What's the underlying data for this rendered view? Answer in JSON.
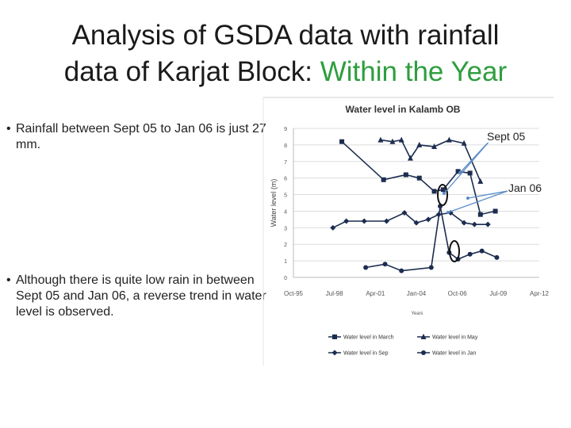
{
  "slide": {
    "title_line1": "Analysis of GSDA data with rainfall",
    "title_line2_main": "data of Karjat Block: ",
    "title_line2_highlight": "Within the Year",
    "bullet1": "Rainfall  between  Sept 05 to Jan 06 is just 27 mm.",
    "bullet2": "Although there is quite low rain in between Sept 05 and Jan 06, a reverse trend in water level is observed.",
    "callout_sept": "Sept 05",
    "callout_jan": "Jan 06"
  },
  "colors": {
    "title_highlight": "#2e9e3e",
    "series": "#1c2d4f",
    "arrow": "#5b8cc8",
    "circle": "#111111"
  },
  "chart_data": {
    "type": "line",
    "title": "Water level in Kalamb OB",
    "xlabel": "Years",
    "ylabel": "Water level (m)",
    "ylim": [
      0,
      9
    ],
    "yticks": [
      "0",
      "1",
      "2",
      "3",
      "4",
      "5",
      "6",
      "7",
      "8",
      "9"
    ],
    "xticks": [
      {
        "label": "Oct-95",
        "year": 1995.75
      },
      {
        "label": "Jul-98",
        "year": 1998.5
      },
      {
        "label": "Apr-01",
        "year": 2001.25
      },
      {
        "label": "Jan-04",
        "year": 2004.0
      },
      {
        "label": "Oct-06",
        "year": 2006.75
      },
      {
        "label": "Jul-09",
        "year": 2009.5
      },
      {
        "label": "Apr-12",
        "year": 2012.25
      }
    ],
    "xlim": [
      1995.75,
      2012.25
    ],
    "grid": true,
    "legend_position": "bottom",
    "series": [
      {
        "name": "Water level in March",
        "marker": "square",
        "x": [
          1999.0,
          2001.8,
          2003.3,
          2004.2,
          2005.2,
          2005.8,
          2006.8,
          2007.6,
          2008.3,
          2009.3
        ],
        "y": [
          8.2,
          5.9,
          6.2,
          6.0,
          5.2,
          5.3,
          6.4,
          6.3,
          3.8,
          4.0
        ]
      },
      {
        "name": "Water level in May",
        "marker": "triangle",
        "x": [
          2001.6,
          2002.4,
          2003.0,
          2003.6,
          2004.2,
          2005.2,
          2006.2,
          2007.2,
          2008.3
        ],
        "y": [
          8.3,
          8.2,
          8.3,
          7.2,
          8.0,
          7.9,
          8.3,
          8.1,
          5.8
        ]
      },
      {
        "name": "Water level in Sep",
        "marker": "diamond",
        "x": [
          1998.4,
          1999.3,
          2000.5,
          2002.0,
          2003.2,
          2004.0,
          2004.8,
          2005.5,
          2006.3,
          2007.2,
          2007.9,
          2008.8
        ],
        "y": [
          3.0,
          3.4,
          3.4,
          3.4,
          3.9,
          3.3,
          3.5,
          3.8,
          3.9,
          3.3,
          3.2,
          3.2
        ]
      },
      {
        "name": "Water level in Jan",
        "marker": "circle",
        "x": [
          2000.6,
          2001.9,
          2003.0,
          2005.0,
          2005.6,
          2006.2,
          2006.8,
          2007.6,
          2008.4,
          2009.4
        ],
        "y": [
          0.6,
          0.8,
          0.4,
          0.6,
          4.3,
          1.5,
          1.1,
          1.4,
          1.6,
          1.2
        ]
      }
    ]
  }
}
